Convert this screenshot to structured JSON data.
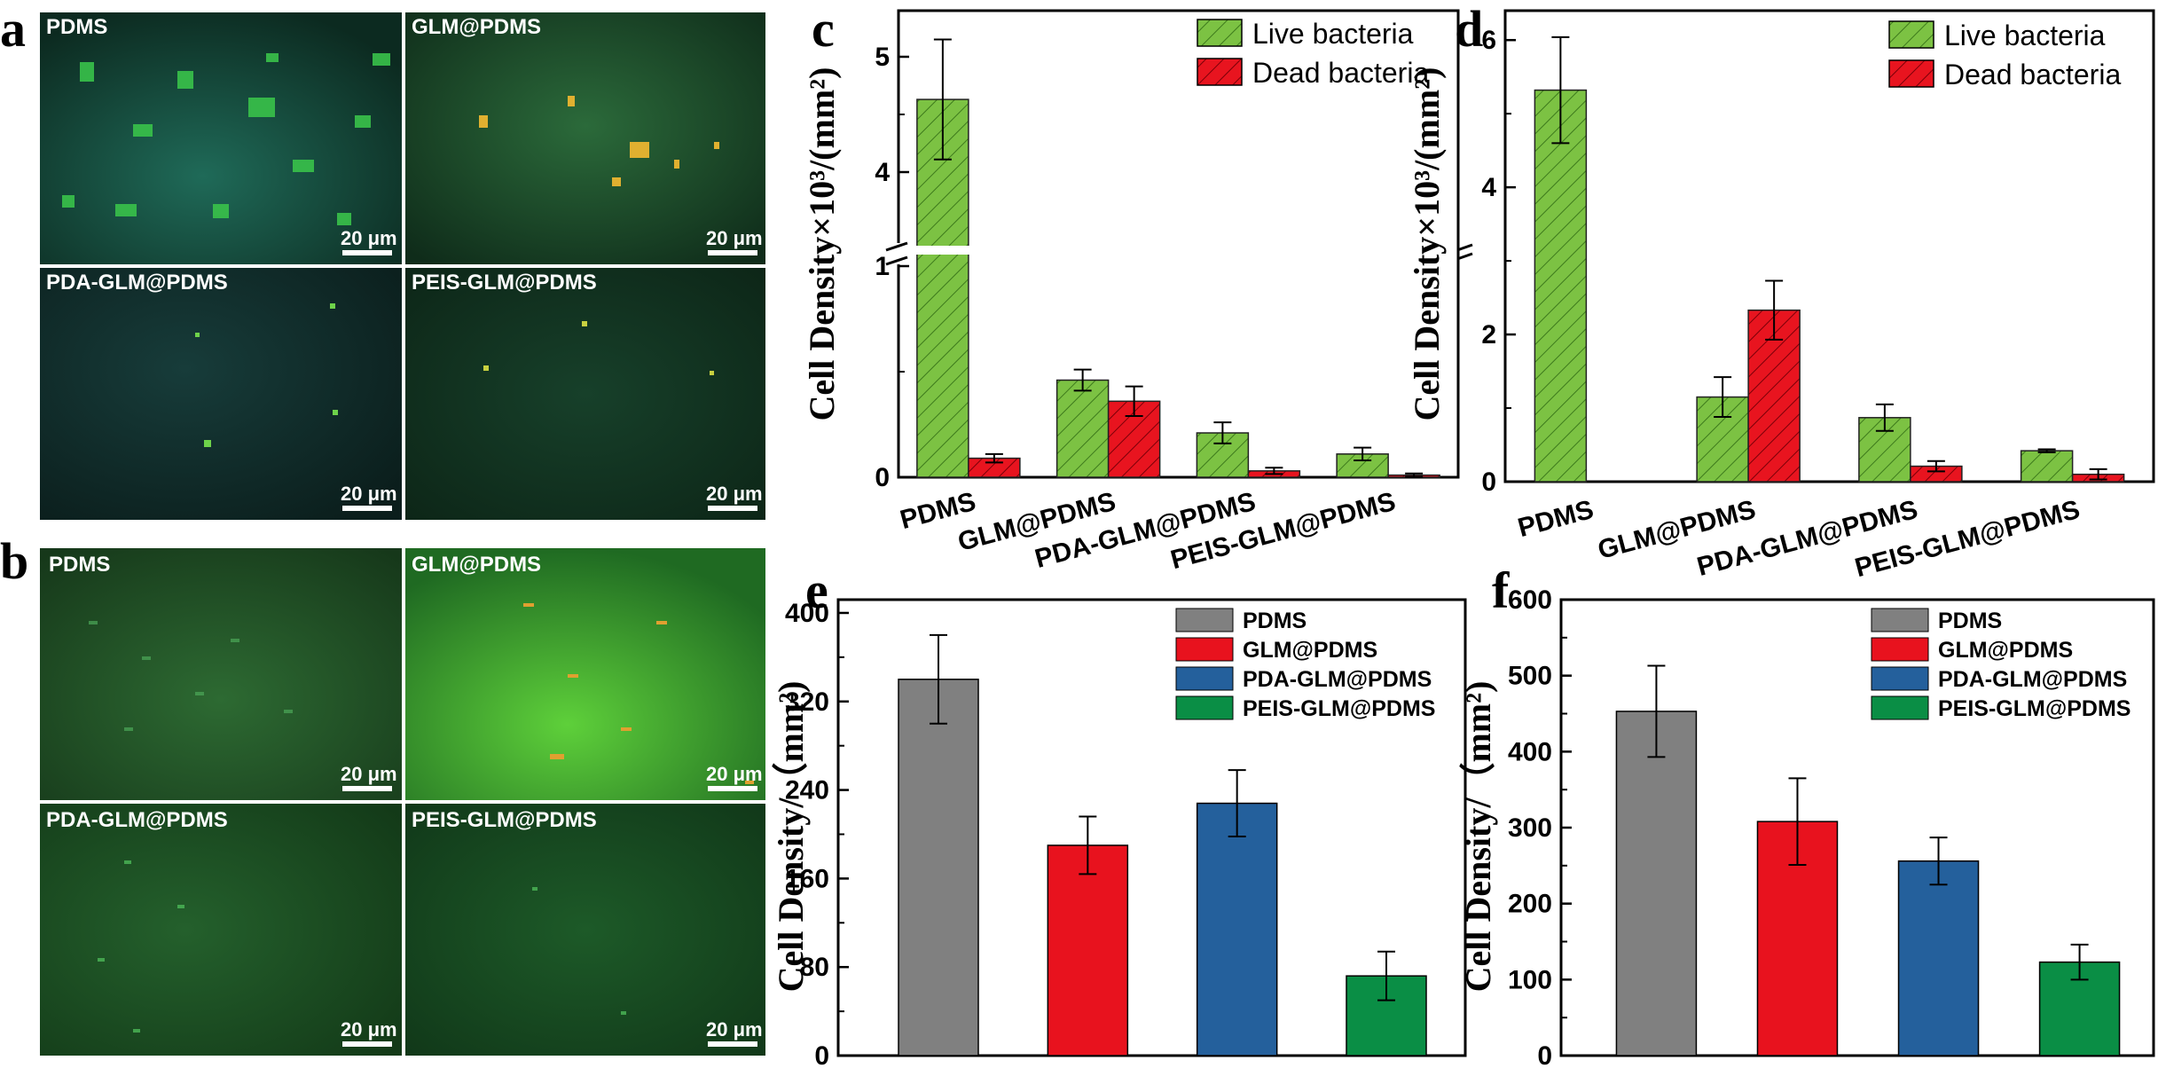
{
  "panels": {
    "a": {
      "letter": "a",
      "tiles": [
        {
          "label": "PDMS",
          "scale": "20 μm"
        },
        {
          "label": "GLM@PDMS",
          "scale": "20 μm"
        },
        {
          "label": "PDA-GLM@PDMS",
          "scale": "20 μm"
        },
        {
          "label": "PEIS-GLM@PDMS",
          "scale": "20 μm"
        }
      ]
    },
    "b": {
      "letter": "b",
      "tiles": [
        {
          "label": "PDMS",
          "scale": "20 μm"
        },
        {
          "label": "GLM@PDMS",
          "scale": "20 μm"
        },
        {
          "label": "PDA-GLM@PDMS",
          "scale": "20 μm"
        },
        {
          "label": "PEIS-GLM@PDMS",
          "scale": "20 μm"
        }
      ]
    }
  },
  "colors": {
    "live": "#7cc243",
    "dead": "#e8141f",
    "pdms": "#808080",
    "glm": "#e8121e",
    "pda": "#24609c",
    "peis": "#0a8e45"
  },
  "chart_data": [
    {
      "id": "c",
      "letter": "c",
      "type": "bar",
      "categories": [
        "PDMS",
        "GLM@PDMS",
        "PDA-GLM@PDMS",
        "PEIS-GLM@PDMS"
      ],
      "series": [
        {
          "name": "Live bacteria",
          "values": [
            4.63,
            0.46,
            0.21,
            0.11
          ],
          "errors": [
            0.52,
            0.05,
            0.05,
            0.03
          ]
        },
        {
          "name": "Dead bacteria",
          "values": [
            0.09,
            0.36,
            0.03,
            0.01
          ],
          "errors": [
            0.02,
            0.07,
            0.015,
            0.008
          ]
        }
      ],
      "ylabel": "Cell Density×10³/(mm²)",
      "axis_break": {
        "lower": [
          0,
          1
        ],
        "upper": [
          3.4,
          5.4
        ]
      },
      "yticks_lower": [
        "0",
        "1"
      ],
      "yticks_upper": [
        "4",
        "5"
      ],
      "legend_position": "top-right",
      "hatched": true
    },
    {
      "id": "d",
      "letter": "d",
      "type": "bar",
      "categories": [
        "PDMS",
        "GLM@PDMS",
        "PDA-GLM@PDMS",
        "PEIS-GLM@PDMS"
      ],
      "series": [
        {
          "name": "Live bacteria",
          "values": [
            5.32,
            1.15,
            0.87,
            0.42
          ],
          "errors": [
            0.72,
            0.27,
            0.18,
            0.02
          ]
        },
        {
          "name": "Dead bacteria",
          "values": [
            0,
            2.33,
            0.21,
            0.1
          ],
          "errors": [
            0,
            0.4,
            0.07,
            0.07
          ]
        }
      ],
      "ylabel": "Cell Density×10³/(mm²)",
      "ylim": [
        0,
        6.4
      ],
      "yticks": [
        "0",
        "2",
        "4",
        "6"
      ],
      "legend_position": "top-right",
      "hatched": true
    },
    {
      "id": "e",
      "letter": "e",
      "type": "bar",
      "categories": [
        "PDMS",
        "GLM@PDMS",
        "PDA-GLM@PDMS",
        "PEIS-GLM@PDMS"
      ],
      "values": [
        340,
        190,
        228,
        72
      ],
      "errors": [
        40,
        26,
        30,
        22
      ],
      "ylabel": "Cell Density/（mm²)",
      "ylim": [
        0,
        412
      ],
      "yticks": [
        "0",
        "80",
        "160",
        "240",
        "320",
        "400"
      ],
      "legend": [
        "PDMS",
        "GLM@PDMS",
        "PDA-GLM@PDMS",
        "PEIS-GLM@PDMS"
      ],
      "legend_position": "top-right"
    },
    {
      "id": "f",
      "letter": "f",
      "type": "bar",
      "categories": [
        "PDMS",
        "GLM@PDMS",
        "PDA-GLM@PDMS",
        "PEIS-GLM@PDMS"
      ],
      "values": [
        453,
        308,
        256,
        123
      ],
      "errors": [
        60,
        57,
        31,
        23
      ],
      "ylabel": "Cell Density/（mm²)",
      "ylim": [
        0,
        600
      ],
      "yticks": [
        "0",
        "100",
        "200",
        "300",
        "400",
        "500",
        "600"
      ],
      "legend": [
        "PDMS",
        "GLM@PDMS",
        "PDA-GLM@PDMS",
        "PEIS-GLM@PDMS"
      ],
      "legend_position": "top-right"
    }
  ]
}
